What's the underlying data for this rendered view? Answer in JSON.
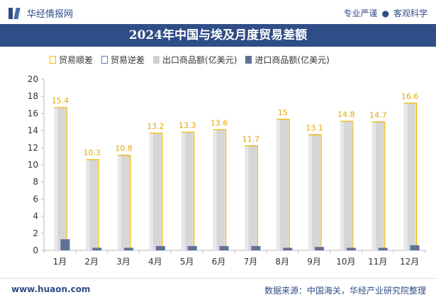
{
  "header": {
    "brand": "华经情报网",
    "slogan_left": "专业严谨",
    "slogan_sep": "●",
    "slogan_right": "客观科学"
  },
  "title": "2024年中国与埃及月度贸易差额",
  "legend": {
    "surplus": "贸易顺差",
    "deficit": "贸易逆差",
    "export": "出口商品额(亿美元)",
    "import": "进口商品额(亿美元)"
  },
  "footer": {
    "website": "www.huaon.com",
    "source": "数据来源：中国海关，华经产业研究院整理"
  },
  "colors": {
    "navy": "#2f4d86",
    "export": "#d6d6d6",
    "import": "#5f7196",
    "surplus_border": "#f2b800",
    "surplus_label": "#e5a800"
  },
  "chart_data": {
    "type": "bar",
    "categories": [
      "1月",
      "2月",
      "3月",
      "4月",
      "5月",
      "6月",
      "7月",
      "8月",
      "9月",
      "10月",
      "11月",
      "12月"
    ],
    "series": [
      {
        "name": "贸易顺差",
        "values": [
          15.4,
          10.3,
          10.8,
          13.2,
          13.3,
          13.6,
          11.7,
          15,
          13.1,
          14.8,
          14.7,
          16.6
        ],
        "labels": [
          "15.4",
          "10.3",
          "10.8",
          "13.2",
          "13.3",
          "13.6",
          "11.7",
          "15",
          "13.1",
          "14.8",
          "14.7",
          "16.6"
        ]
      },
      {
        "name": "贸易逆差",
        "values": [
          0,
          0,
          0,
          0,
          0,
          0,
          0,
          0,
          0,
          0,
          0,
          0
        ]
      },
      {
        "name": "出口商品额(亿美元)",
        "values": [
          16.7,
          10.6,
          11.2,
          13.7,
          13.8,
          14.1,
          12.3,
          15.4,
          13.6,
          15.1,
          15.1,
          17.2
        ]
      },
      {
        "name": "进口商品额(亿美元)",
        "values": [
          1.3,
          0.3,
          0.3,
          0.5,
          0.5,
          0.5,
          0.5,
          0.3,
          0.4,
          0.3,
          0.3,
          0.6
        ]
      }
    ],
    "yticks": [
      "0",
      "2",
      "4",
      "6",
      "8",
      "10",
      "12",
      "14",
      "16",
      "18",
      "20"
    ],
    "ylim": [
      0,
      20
    ],
    "xlabel": "",
    "ylabel": "",
    "grid": false,
    "legend_position": "top"
  }
}
